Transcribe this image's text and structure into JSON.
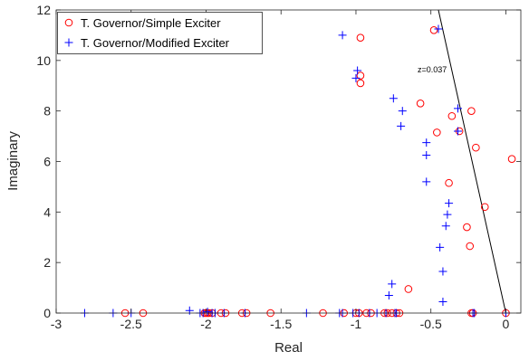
{
  "chart_data": {
    "type": "scatter",
    "xlabel": "Real",
    "ylabel": "Imaginary",
    "xlim": [
      -3,
      0.1
    ],
    "ylim": [
      0,
      12
    ],
    "xticks": [
      -3,
      -2.5,
      -2,
      -1.5,
      -1,
      -0.5,
      0
    ],
    "yticks": [
      0,
      2,
      4,
      6,
      8,
      10,
      12
    ],
    "xtick_labels": [
      "-3",
      "-2.5",
      "-2",
      "-1.5",
      "-1",
      "-0.5",
      "0"
    ],
    "ytick_labels": [
      "0",
      "2",
      "4",
      "6",
      "8",
      "10",
      "12"
    ],
    "legend_position": "top-left",
    "grid": false,
    "series": [
      {
        "name": "T. Governor/Simple Exciter",
        "marker": "circle",
        "color": "#ff0000",
        "points": [
          [
            -2.54,
            0
          ],
          [
            -2.42,
            0
          ],
          [
            -2.01,
            0
          ],
          [
            -2.0,
            0
          ],
          [
            -1.99,
            0
          ],
          [
            -1.98,
            0
          ],
          [
            -1.96,
            0
          ],
          [
            -1.9,
            0
          ],
          [
            -1.87,
            0
          ],
          [
            -1.76,
            0
          ],
          [
            -1.73,
            0
          ],
          [
            -1.57,
            0
          ],
          [
            -1.22,
            0
          ],
          [
            -1.08,
            0
          ],
          [
            -1.0,
            0
          ],
          [
            -0.98,
            0
          ],
          [
            -0.93,
            0
          ],
          [
            -0.9,
            0
          ],
          [
            -0.81,
            0
          ],
          [
            -0.79,
            0
          ],
          [
            -0.76,
            0
          ],
          [
            -0.73,
            0
          ],
          [
            -0.71,
            0
          ],
          [
            -0.23,
            0
          ],
          [
            -0.22,
            0
          ],
          [
            0.0,
            0
          ],
          [
            -0.97,
            10.9
          ],
          [
            -0.48,
            11.2
          ],
          [
            -0.97,
            9.4
          ],
          [
            -0.97,
            9.1
          ],
          [
            -0.57,
            8.3
          ],
          [
            -0.36,
            7.8
          ],
          [
            -0.23,
            8.0
          ],
          [
            -0.31,
            7.2
          ],
          [
            -0.46,
            7.15
          ],
          [
            -0.2,
            6.55
          ],
          [
            0.04,
            6.1
          ],
          [
            -0.38,
            5.15
          ],
          [
            -0.14,
            4.2
          ],
          [
            -0.26,
            3.4
          ],
          [
            -0.24,
            2.65
          ],
          [
            -0.65,
            0.95
          ]
        ]
      },
      {
        "name": "T. Governor/Modified Exciter",
        "marker": "plus",
        "color": "#0000ff",
        "points": [
          [
            -2.81,
            0
          ],
          [
            -2.62,
            0
          ],
          [
            -2.5,
            0
          ],
          [
            -2.11,
            0.1
          ],
          [
            -2.04,
            0
          ],
          [
            -2.02,
            0
          ],
          [
            -1.99,
            0.05
          ],
          [
            -1.96,
            0
          ],
          [
            -1.94,
            0
          ],
          [
            -1.88,
            0
          ],
          [
            -1.74,
            0
          ],
          [
            -1.33,
            0
          ],
          [
            -1.11,
            0
          ],
          [
            -1.09,
            0
          ],
          [
            -1.02,
            0
          ],
          [
            -0.98,
            0
          ],
          [
            -0.91,
            0
          ],
          [
            -0.86,
            0
          ],
          [
            -0.8,
            0
          ],
          [
            -0.74,
            0
          ],
          [
            -0.73,
            0
          ],
          [
            -0.22,
            0
          ],
          [
            -0.21,
            0
          ],
          [
            0.0,
            0
          ],
          [
            -1.09,
            11.0
          ],
          [
            -0.45,
            11.25
          ],
          [
            -0.99,
            9.6
          ],
          [
            -1.0,
            9.3
          ],
          [
            -0.75,
            8.5
          ],
          [
            -0.69,
            8.0
          ],
          [
            -0.32,
            8.1
          ],
          [
            -0.7,
            7.4
          ],
          [
            -0.32,
            7.2
          ],
          [
            -0.53,
            6.75
          ],
          [
            -0.53,
            6.25
          ],
          [
            -0.53,
            5.2
          ],
          [
            -0.38,
            4.35
          ],
          [
            -0.39,
            3.9
          ],
          [
            -0.4,
            3.45
          ],
          [
            -0.44,
            2.6
          ],
          [
            -0.42,
            1.65
          ],
          [
            -0.76,
            1.15
          ],
          [
            -0.78,
            0.7
          ],
          [
            -0.42,
            0.45
          ]
        ]
      }
    ],
    "damping_line": {
      "label": "z=0.037",
      "from": [
        0,
        0
      ],
      "to": [
        -0.45,
        12
      ]
    }
  }
}
